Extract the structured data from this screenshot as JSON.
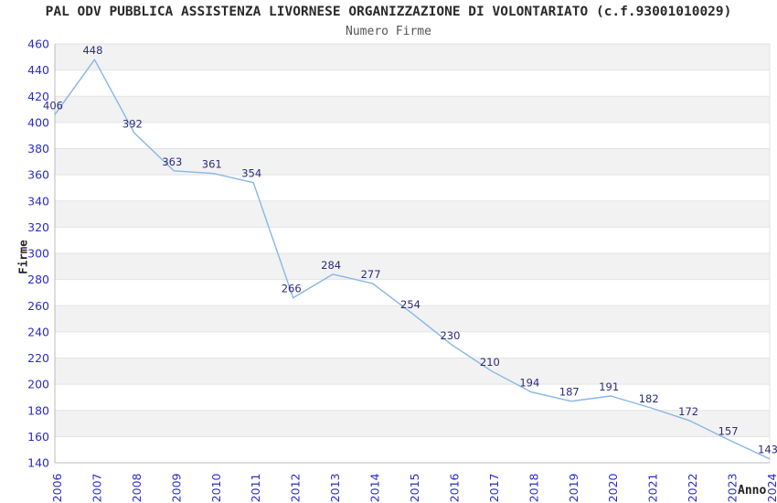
{
  "chart_data": {
    "type": "line",
    "title": "PAL ODV PUBBLICA ASSISTENZA LIVORNESE ORGANIZZAZIONE DI VOLONTARIATO (c.f.93001010029)",
    "subtitle": "Numero Firme",
    "xlabel": "Anno",
    "ylabel": "Firme",
    "categories": [
      "2006",
      "2007",
      "2008",
      "2009",
      "2010",
      "2011",
      "2012",
      "2013",
      "2014",
      "2015",
      "2016",
      "2017",
      "2018",
      "2019",
      "2020",
      "2021",
      "2022",
      "2023",
      "2024"
    ],
    "values": [
      406,
      448,
      392,
      363,
      361,
      354,
      266,
      284,
      277,
      254,
      230,
      210,
      194,
      187,
      191,
      182,
      172,
      157,
      143
    ],
    "ylim": [
      140,
      460
    ],
    "yticks": [
      460,
      440,
      420,
      400,
      380,
      360,
      340,
      320,
      300,
      280,
      260,
      240,
      220,
      200,
      180,
      160,
      140
    ],
    "grid": "horizontal-bands-alternating",
    "legend": "none",
    "marker": "none",
    "colors": {
      "line": "#87b7e8",
      "band": "#f2f2f2",
      "band_alt": "#ffffff",
      "gridline": "#e3e3e3",
      "axis": "#bbbbbb",
      "tick_label": "#2b2bd0",
      "value_label": "#2b2b80",
      "title": "#2a2a2a",
      "subtitle": "#555555",
      "background": "#ffffff"
    }
  }
}
